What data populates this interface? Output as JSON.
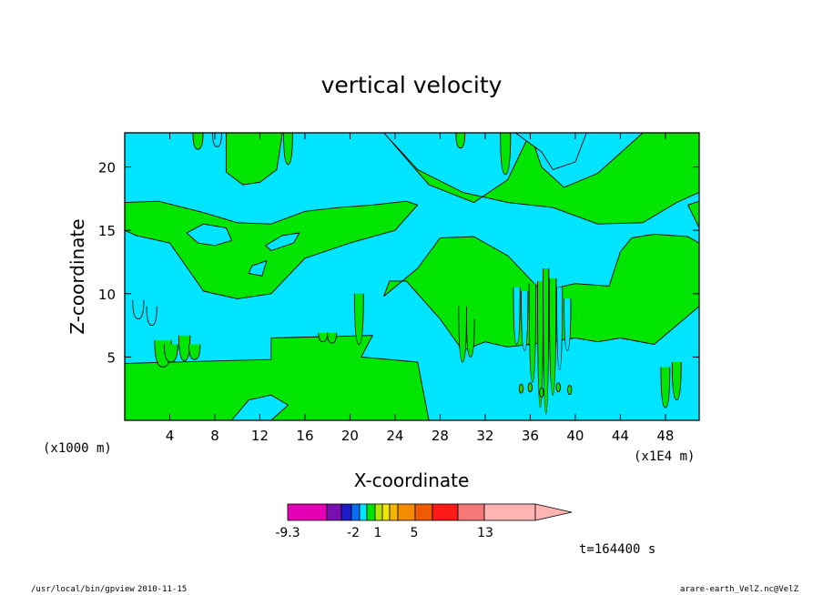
{
  "chart_data": {
    "type": "heatmap",
    "title": "vertical velocity",
    "xlabel": "X-coordinate",
    "ylabel": "Z-coordinate",
    "x_unit": "(x1E4 m)",
    "y_unit": "(x1000 m)",
    "xlim": [
      0,
      51
    ],
    "ylim": [
      0,
      22.7
    ],
    "x_ticks": [
      4,
      8,
      12,
      16,
      20,
      24,
      28,
      32,
      36,
      40,
      44,
      48
    ],
    "y_ticks": [
      5,
      10,
      15,
      20
    ],
    "colors": {
      "background_field": "#00e5ff",
      "positive_region": "#00e600",
      "contour_line": "#000000"
    },
    "colorbar": {
      "labels": [
        "-9.3",
        "-2",
        "1",
        "5",
        "13"
      ],
      "colors": [
        "#e600b4",
        "#7a0fb0",
        "#1c1cc8",
        "#0a6cf0",
        "#00e5ff",
        "#00e600",
        "#b8e600",
        "#f0e600",
        "#f5b400",
        "#f58c00",
        "#f05a00",
        "#ff1a1a",
        "#f57878",
        "#ffb4b4"
      ],
      "extend": "right"
    },
    "regions": [
      {
        "name": "positive",
        "x": [
          0,
          0,
          13,
          13,
          22,
          21,
          26,
          27
        ],
        "z": [
          0,
          4.5,
          4.8,
          6.5,
          6.7,
          5,
          4.6,
          0
        ]
      },
      {
        "name": "positive",
        "x": [
          0,
          3,
          7,
          10,
          13,
          16,
          19,
          22,
          25,
          26,
          24,
          20,
          16,
          13,
          10,
          7,
          4,
          1,
          0
        ],
        "z": [
          17.2,
          17.3,
          16.4,
          15.6,
          15.5,
          16.5,
          16.8,
          17,
          17.3,
          17,
          15,
          14,
          12.8,
          10,
          9.6,
          10.2,
          14,
          14.6,
          15
        ]
      },
      {
        "name": "positive",
        "x": [
          23,
          26,
          28,
          31,
          34,
          37,
          40,
          43,
          44,
          45,
          47,
          50,
          51,
          51,
          47,
          44,
          42,
          40,
          36,
          34,
          32,
          30,
          28,
          25,
          23.5
        ],
        "z": [
          9.8,
          12,
          14.4,
          14.5,
          13,
          10.2,
          10.8,
          10.6,
          13.3,
          14.4,
          14.7,
          14.5,
          14,
          9,
          6,
          6.5,
          6.2,
          6.5,
          6,
          5.8,
          6.2,
          5.5,
          8,
          11,
          11
        ]
      },
      {
        "name": "positive",
        "x": [
          23,
          26,
          30,
          34,
          38,
          42,
          46,
          49,
          51,
          51,
          46,
          42,
          39,
          37,
          36,
          34,
          31,
          27,
          23
        ],
        "z": [
          22.7,
          19.8,
          18,
          17.2,
          16.8,
          15.5,
          15.6,
          17.2,
          18,
          22.7,
          22.7,
          19.5,
          18.4,
          20,
          22.7,
          19,
          17.2,
          18.6,
          22.7
        ]
      },
      {
        "name": "positive",
        "x": [
          9,
          9,
          10.5,
          12,
          13.5,
          14,
          14
        ],
        "z": [
          22.7,
          19.6,
          18.6,
          18.8,
          19.8,
          22.7,
          22.7
        ]
      },
      {
        "name": "positive",
        "x": [
          50,
          51,
          51
        ],
        "z": [
          17,
          17.3,
          15.2
        ]
      },
      {
        "name": "negative_hole",
        "x": [
          5.5,
          7,
          9,
          9.5,
          8,
          6.5
        ],
        "z": [
          14.8,
          15.5,
          15.2,
          14.2,
          13.8,
          14
        ]
      },
      {
        "name": "negative_hole",
        "x": [
          12.5,
          14,
          15.5,
          15,
          13
        ],
        "z": [
          13.8,
          14.6,
          14.8,
          14,
          13.4
        ]
      },
      {
        "name": "negative_hole",
        "x": [
          11.3,
          12.6,
          12.2,
          11
        ],
        "z": [
          12.2,
          12.6,
          11.4,
          11.6
        ]
      },
      {
        "name": "negative_hole",
        "x": [
          34.7,
          37,
          38,
          40,
          41,
          38,
          35.5
        ],
        "z": [
          22.7,
          21.2,
          19.8,
          20.4,
          22.7,
          22.7,
          22.7
        ]
      },
      {
        "name": "negative_hole",
        "x": [
          9.5,
          11,
          13,
          14.5,
          13
        ],
        "z": [
          0,
          1.6,
          2,
          1.2,
          0
        ]
      }
    ]
  },
  "annotations": {
    "time": "t=164400 s",
    "program": "/usr/local/bin/gpview",
    "date": "2010-11-15",
    "file": "arare-earth_VelZ.nc@VelZ"
  }
}
